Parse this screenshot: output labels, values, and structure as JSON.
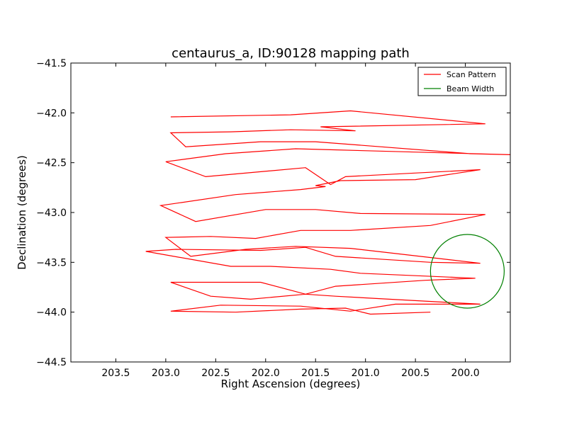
{
  "chart_data": {
    "type": "line",
    "title": "centaurus_a, ID:90128 mapping path",
    "xlabel": "Right Ascension (degrees)",
    "ylabel": "Declination (degrees)",
    "xlim": [
      203.95,
      199.55
    ],
    "ylim": [
      -44.5,
      -41.5
    ],
    "xticks": [
      203.5,
      203.0,
      202.5,
      202.0,
      201.5,
      201.0,
      200.5,
      200.0
    ],
    "xtick_labels": [
      "203.5",
      "203.0",
      "202.5",
      "202.0",
      "201.5",
      "201.0",
      "200.5",
      "200.0"
    ],
    "yticks": [
      -41.5,
      -42.0,
      -42.5,
      -43.0,
      -43.5,
      -44.0,
      -44.5
    ],
    "ytick_labels": [
      "−41.5",
      "−42.0",
      "−42.5",
      "−43.0",
      "−43.5",
      "−44.0",
      "−44.5"
    ],
    "grid": false,
    "legend_position": "top-right",
    "series": [
      {
        "name": "Scan Pattern",
        "color": "#ff0000",
        "x": [
          202.95,
          201.75,
          201.15,
          199.8,
          201.45,
          201.1,
          201.75,
          202.35,
          202.95,
          202.8,
          202.05,
          201.5,
          199.95,
          199.55,
          201.35,
          201.7,
          202.4,
          203.0,
          202.6,
          201.6,
          201.35,
          201.2,
          199.85,
          200.5,
          201.25,
          201.5,
          201.4,
          201.65,
          202.3,
          203.05,
          202.7,
          202.0,
          201.5,
          201.05,
          199.8,
          200.35,
          201.15,
          201.65,
          202.1,
          202.55,
          203.0,
          202.75,
          202.2,
          201.7,
          201.15,
          199.85,
          200.35,
          201.3,
          201.6,
          202.05,
          202.9,
          203.2,
          202.35,
          201.95,
          201.35,
          201.05,
          199.9,
          200.4,
          201.3,
          201.6,
          202.05,
          202.95,
          202.55,
          202.15,
          201.6,
          201.3,
          199.85,
          200.7,
          201.15,
          201.65,
          202.45,
          202.95,
          202.3,
          201.65,
          201.2,
          200.95,
          200.35
        ],
        "y": [
          -42.04,
          -42.02,
          -41.98,
          -42.11,
          -42.14,
          -42.18,
          -42.17,
          -42.19,
          -42.2,
          -42.34,
          -42.29,
          -42.29,
          -42.41,
          -42.42,
          -42.37,
          -42.36,
          -42.41,
          -42.49,
          -42.64,
          -42.55,
          -42.72,
          -42.64,
          -42.57,
          -42.67,
          -42.68,
          -42.73,
          -42.74,
          -42.77,
          -42.82,
          -42.93,
          -43.09,
          -42.97,
          -42.97,
          -43.01,
          -43.02,
          -43.13,
          -43.18,
          -43.18,
          -43.26,
          -43.24,
          -43.25,
          -43.44,
          -43.37,
          -43.34,
          -43.36,
          -43.51,
          -43.5,
          -43.44,
          -43.35,
          -43.38,
          -43.37,
          -43.39,
          -43.54,
          -43.54,
          -43.57,
          -43.61,
          -43.66,
          -43.68,
          -43.74,
          -43.82,
          -43.7,
          -43.7,
          -43.84,
          -43.87,
          -43.82,
          -43.84,
          -43.92,
          -43.92,
          -43.99,
          -43.94,
          -43.93,
          -43.99,
          -44.0,
          -43.97,
          -43.96,
          -44.02,
          -44.0
        ]
      },
      {
        "name": "Beam Width",
        "color": "#008000",
        "shape": "circle",
        "center": [
          199.98,
          -43.59
        ],
        "radius_dec": 0.37
      }
    ]
  }
}
